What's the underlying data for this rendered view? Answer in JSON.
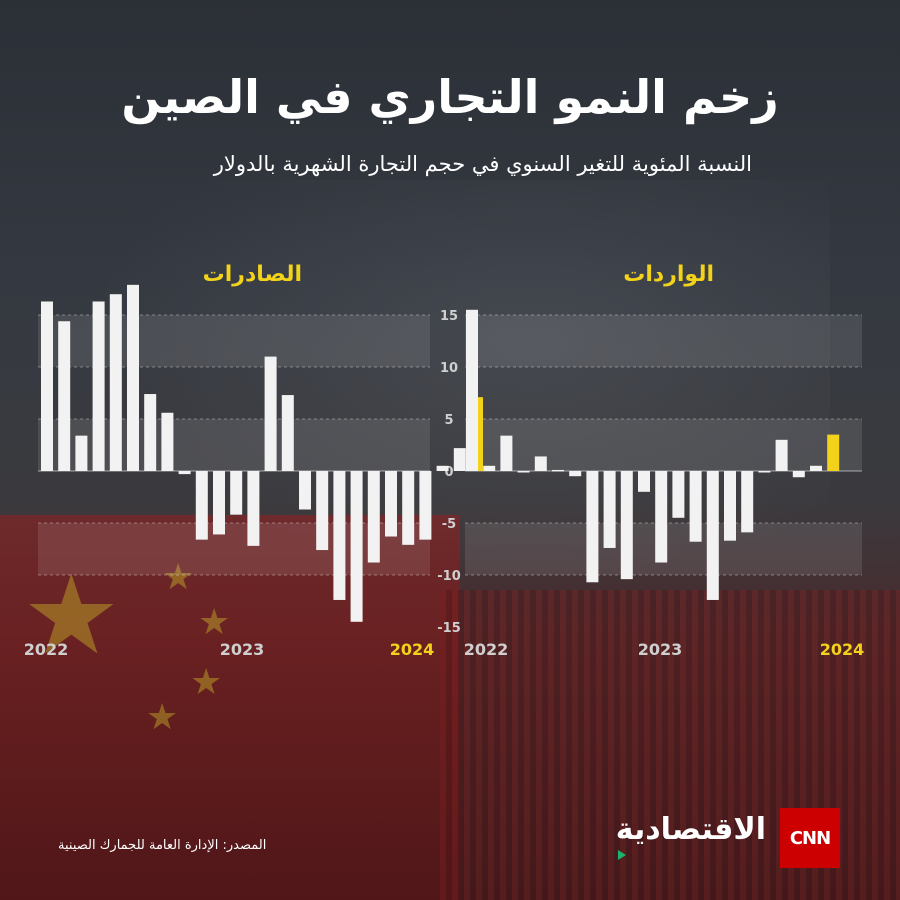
{
  "header": {
    "title": "زخم النمو التجاري في الصين",
    "subtitle": "النسبة المئوية للتغير السنوي في حجم التجارة الشهرية بالدولار"
  },
  "footer": {
    "source": "المصدر: الإدارة العامة للجمارك الصينية",
    "brand_text": "الاقتصادية",
    "brand_logo": "CNN"
  },
  "colors": {
    "bar": "#f2f2f2",
    "highlight": "#f2d21a",
    "axis_text": "#cfcfcf"
  },
  "chart_data": [
    {
      "type": "bar",
      "title": "الصادرات",
      "x_labels": [
        "2022",
        "2023",
        "2024"
      ],
      "ylim": [
        -15,
        17
      ],
      "values": [
        16.3,
        14.4,
        3.4,
        16.3,
        17.0,
        17.9,
        7.4,
        5.6,
        -0.3,
        -6.6,
        -6.1,
        -4.2,
        -7.2,
        11.0,
        7.3,
        -3.7,
        -7.6,
        -12.4,
        -14.5,
        -8.8,
        -6.3,
        -7.1,
        -6.6,
        0.5,
        2.2,
        7.1
      ],
      "highlight_last": 1
    },
    {
      "type": "bar",
      "title": "الواردات",
      "x_labels": [
        "2022",
        "2023",
        "2024"
      ],
      "ylim": [
        -15,
        17
      ],
      "tick_values": [
        15,
        10,
        5,
        0,
        -5,
        -10,
        -15
      ],
      "tick_labels": [
        "15",
        "10",
        "5",
        "0",
        "-5",
        "-10",
        "-15"
      ],
      "values": [
        15.5,
        0.5,
        3.4,
        0.0,
        1.4,
        0.1,
        -0.5,
        -10.7,
        -7.4,
        -10.4,
        -2.0,
        -8.8,
        -4.5,
        -6.8,
        -12.4,
        -6.7,
        -5.9,
        0.0,
        3.0,
        -0.6,
        0.5,
        3.5
      ],
      "highlight_last": 1
    }
  ]
}
